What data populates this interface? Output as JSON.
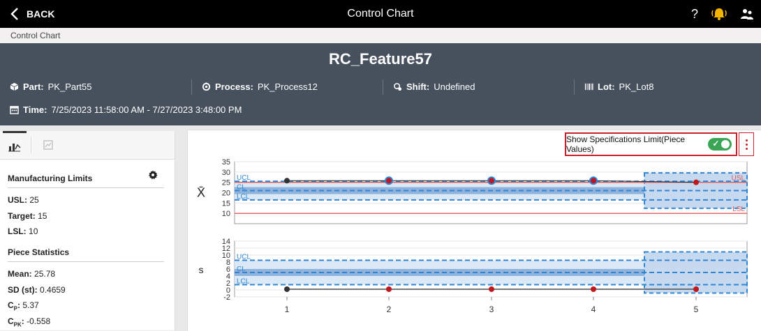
{
  "topbar": {
    "back_label": "BACK",
    "title": "Control Chart"
  },
  "breadcrumb": "Control Chart",
  "header": {
    "feature": "RC_Feature57",
    "part": {
      "label": "Part:",
      "value": "PK_Part55"
    },
    "process": {
      "label": "Process:",
      "value": "PK_Process12"
    },
    "shift": {
      "label": "Shift:",
      "value": "Undefined"
    },
    "lot": {
      "label": "Lot:",
      "value": "PK_Lot8"
    },
    "time": {
      "label": "Time:",
      "value": "7/25/2023 11:58:00 AM - 7/27/2023 3:48:00 PM"
    }
  },
  "left_panel": {
    "manufacturing_title": "Manufacturing Limits",
    "usl": {
      "label": "USL:",
      "value": "25"
    },
    "target": {
      "label": "Target:",
      "value": "15"
    },
    "lsl": {
      "label": "LSL:",
      "value": "10"
    },
    "piece_title": "Piece Statistics",
    "mean": {
      "label": "Mean:",
      "value": "25.78"
    },
    "sd": {
      "label": "SD (st):",
      "value": "0.4659"
    },
    "cp": {
      "label_main": "C",
      "label_sub": "P",
      "label_end": ":",
      "value": "5.37"
    },
    "cpk": {
      "label_main": "C",
      "label_sub": "PK",
      "label_end": ":",
      "value": "-0.558"
    }
  },
  "toggle": {
    "label": "Show Specifications Limit(Piece Values)",
    "on": true
  },
  "colors": {
    "header_bg": "#47515d",
    "toggle_on": "#3aa655",
    "highlight": "#c8202b",
    "limit_line": "#2f86d6",
    "spec_line": "#e05a5a",
    "point_red": "#c0161d",
    "point_dark": "#333333"
  },
  "chart_data": [
    {
      "type": "line",
      "ylabel": "X̄",
      "x": [
        1,
        2,
        3,
        4,
        5
      ],
      "values": [
        25.8,
        25.8,
        25.8,
        25.8,
        25.0
      ],
      "point_colors": [
        "dark",
        "red",
        "red",
        "red",
        "red"
      ],
      "point_ring": [
        false,
        true,
        true,
        true,
        false
      ],
      "ylim": [
        5,
        35
      ],
      "yticks": [
        10,
        15,
        20,
        25,
        30,
        35
      ],
      "ucl": 25.5,
      "cl": 21,
      "lcl": 16.5,
      "usl": 25,
      "lsl": 10,
      "control_labels": {
        "ucl": "UCL",
        "cl": "CL",
        "lcl": "LCL",
        "usl": "USL",
        "lsl": "LSL"
      }
    },
    {
      "type": "line",
      "ylabel": "s",
      "x": [
        1,
        2,
        3,
        4,
        5
      ],
      "values": [
        0.2,
        0.2,
        0.2,
        0.2,
        0.2
      ],
      "point_colors": [
        "dark",
        "red",
        "red",
        "red",
        "red"
      ],
      "ylim": [
        -2,
        14
      ],
      "yticks": [
        -2,
        0,
        2,
        4,
        6,
        8,
        10,
        12,
        14
      ],
      "ucl": 8.5,
      "cl": 5,
      "lcl": 1.5,
      "control_labels": {
        "ucl": "UCL",
        "cl": "CL",
        "lcl": "LCL"
      }
    }
  ]
}
